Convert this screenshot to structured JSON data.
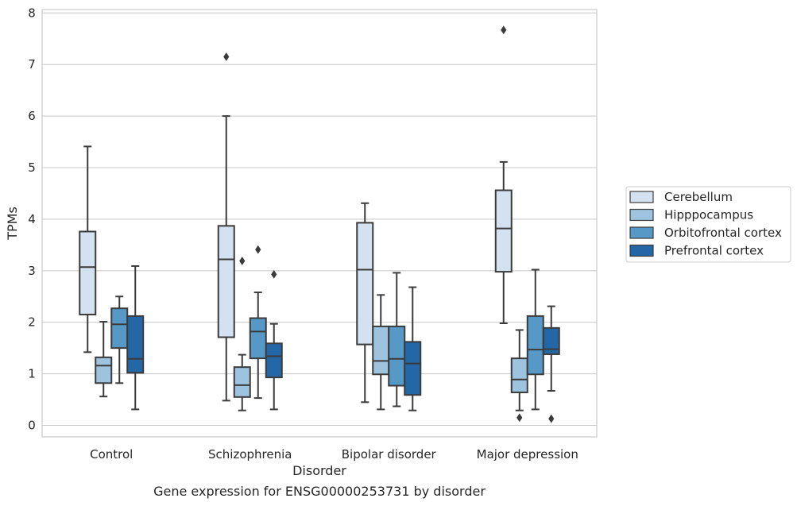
{
  "chart_data": {
    "type": "boxplot",
    "title": "",
    "caption": "Gene expression for ENSG00000253731 by disorder",
    "xlabel": "Disorder",
    "ylabel": "TPMs",
    "ylim": [
      -0.25,
      8.05
    ],
    "yticks": [
      0,
      1,
      2,
      3,
      4,
      5,
      6,
      7,
      8
    ],
    "grid": "horizontal",
    "legend_position": "right",
    "categories": [
      "Control",
      "Schizophrenia",
      "Bipolar disorder",
      "Major depression"
    ],
    "series": [
      {
        "name": "Cerebellum",
        "color": "#d3e1f0",
        "boxes": [
          {
            "whislo": 1.42,
            "q1": 2.15,
            "med": 3.07,
            "q3": 3.76,
            "whishi": 5.41,
            "fliers": []
          },
          {
            "whislo": 0.48,
            "q1": 1.71,
            "med": 3.22,
            "q3": 3.87,
            "whishi": 6.0,
            "fliers": [
              7.15
            ]
          },
          {
            "whislo": 0.45,
            "q1": 1.57,
            "med": 3.02,
            "q3": 3.93,
            "whishi": 4.31,
            "fliers": []
          },
          {
            "whislo": 1.98,
            "q1": 2.98,
            "med": 3.82,
            "q3": 4.56,
            "whishi": 5.11,
            "fliers": [
              7.67
            ]
          }
        ]
      },
      {
        "name": "Hipppocampus",
        "color": "#9dc3de",
        "boxes": [
          {
            "whislo": 0.56,
            "q1": 0.82,
            "med": 1.16,
            "q3": 1.32,
            "whishi": 2.01,
            "fliers": []
          },
          {
            "whislo": 0.29,
            "q1": 0.55,
            "med": 0.78,
            "q3": 1.13,
            "whishi": 1.37,
            "fliers": [
              3.19
            ]
          },
          {
            "whislo": 0.31,
            "q1": 0.99,
            "med": 1.25,
            "q3": 1.92,
            "whishi": 2.53,
            "fliers": []
          },
          {
            "whislo": 0.29,
            "q1": 0.64,
            "med": 0.89,
            "q3": 1.3,
            "whishi": 1.85,
            "fliers": [
              0.15
            ]
          }
        ]
      },
      {
        "name": "Orbitofrontal cortex",
        "color": "#5699c7",
        "boxes": [
          {
            "whislo": 0.82,
            "q1": 1.5,
            "med": 1.96,
            "q3": 2.27,
            "whishi": 2.5,
            "fliers": []
          },
          {
            "whislo": 0.53,
            "q1": 1.3,
            "med": 1.82,
            "q3": 2.08,
            "whishi": 2.58,
            "fliers": [
              3.41
            ]
          },
          {
            "whislo": 0.37,
            "q1": 0.77,
            "med": 1.29,
            "q3": 1.92,
            "whishi": 2.96,
            "fliers": []
          },
          {
            "whislo": 0.31,
            "q1": 0.99,
            "med": 1.47,
            "q3": 2.12,
            "whishi": 3.02,
            "fliers": []
          }
        ]
      },
      {
        "name": "Prefrontal cortex",
        "color": "#2467a7",
        "boxes": [
          {
            "whislo": 0.31,
            "q1": 1.02,
            "med": 1.29,
            "q3": 2.12,
            "whishi": 3.09,
            "fliers": []
          },
          {
            "whislo": 0.31,
            "q1": 0.93,
            "med": 1.34,
            "q3": 1.59,
            "whishi": 1.97,
            "fliers": [
              2.93
            ]
          },
          {
            "whislo": 0.29,
            "q1": 0.59,
            "med": 1.2,
            "q3": 1.62,
            "whishi": 2.68,
            "fliers": []
          },
          {
            "whislo": 0.67,
            "q1": 1.38,
            "med": 1.48,
            "q3": 1.89,
            "whishi": 2.31,
            "fliers": [
              0.13
            ]
          }
        ]
      }
    ]
  }
}
